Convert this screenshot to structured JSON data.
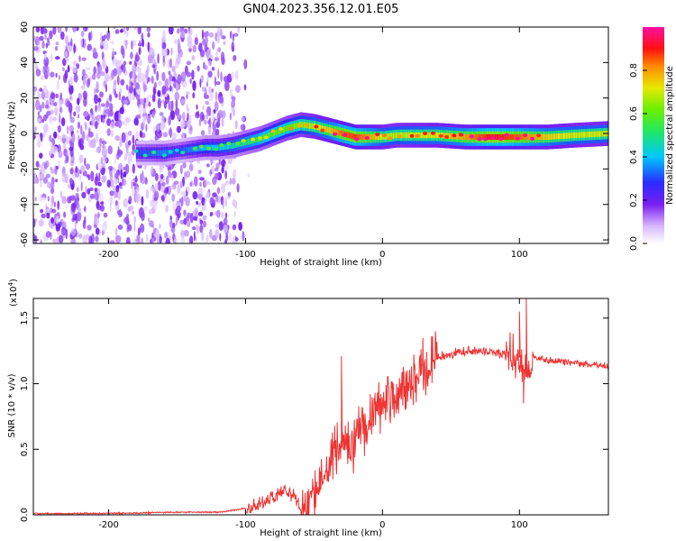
{
  "title": "GN04.2023.356.12.01.E05",
  "chart_data": [
    {
      "type": "heatmap",
      "title": "GN04.2023.356.12.01.E05",
      "xlabel": "Height of straight line (km)",
      "ylabel": "Frequency (Hz)",
      "xlim": [
        -255,
        165
      ],
      "ylim": [
        -62,
        60
      ],
      "x_ticks": [
        -200,
        -100,
        0,
        100
      ],
      "x_tick_labels": [
        "-200",
        "-100",
        "0",
        "100"
      ],
      "y_ticks": [
        -60,
        -40,
        -20,
        0,
        20,
        40,
        60
      ],
      "y_tick_labels": [
        "-60",
        "-40",
        "-20",
        "0",
        "20",
        "40",
        "60"
      ],
      "colorbar": {
        "label": "Normalized spectral amplitude",
        "range": [
          0.0,
          1.0
        ],
        "ticks": [
          0.0,
          0.2,
          0.4,
          0.6,
          0.8
        ],
        "tick_labels": [
          "0.0",
          "0.2",
          "0.4",
          "0.6",
          "0.8"
        ],
        "colormap": "white-purple-blue-cyan-green-yellow-red-magenta"
      },
      "noise_region": {
        "x_range": [
          -255,
          -100
        ],
        "amplitude": 0.12
      },
      "ridge": {
        "x": [
          -180,
          -170,
          -160,
          -150,
          -140,
          -130,
          -120,
          -110,
          -100,
          -90,
          -80,
          -70,
          -60,
          -50,
          -40,
          -30,
          -20,
          -10,
          0,
          10,
          20,
          40,
          60,
          80,
          100,
          120,
          140,
          165
        ],
        "freq": [
          -11,
          -11,
          -11,
          -10,
          -9,
          -8,
          -8,
          -7,
          -5,
          -3,
          0,
          3,
          5,
          4,
          2,
          0,
          -2,
          -2,
          -2,
          -1,
          -1,
          -1,
          -2,
          -2,
          -2,
          -2,
          -1,
          0
        ],
        "amplitude": [
          0.3,
          0.32,
          0.35,
          0.3,
          0.35,
          0.4,
          0.42,
          0.45,
          0.5,
          0.55,
          0.6,
          0.62,
          0.65,
          0.7,
          0.75,
          0.85,
          0.88,
          0.8,
          0.7,
          0.68,
          0.7,
          0.72,
          0.8,
          0.92,
          0.85,
          0.75,
          0.7,
          0.7
        ]
      }
    },
    {
      "type": "line",
      "ylabel": "SNR (10 * v/v)",
      "y_multiplier_label": "(x10",
      "y_multiplier_exponent": "4",
      "y_multiplier_close": ")",
      "xlabel": "Height of straight line (km)",
      "xlim": [
        -255,
        165
      ],
      "ylim": [
        0,
        1.65
      ],
      "x_ticks": [
        -200,
        -100,
        0,
        100
      ],
      "x_tick_labels": [
        "-200",
        "-100",
        "0",
        "100"
      ],
      "y_ticks": [
        0.0,
        0.5,
        1.0,
        1.5
      ],
      "y_tick_labels": [
        "0.0",
        "0.5",
        "1.0",
        "1.5"
      ],
      "series": [
        {
          "name": "SNR",
          "color": "#ee3333",
          "x": [
            -255,
            -200,
            -150,
            -120,
            -105,
            -90,
            -80,
            -70,
            -65,
            -60,
            -55,
            -50,
            -45,
            -40,
            -30,
            -25,
            -20,
            -10,
            0,
            10,
            20,
            30,
            40,
            60,
            80,
            95,
            100,
            105,
            110,
            120,
            140,
            165
          ],
          "y": [
            0.01,
            0.01,
            0.02,
            0.02,
            0.04,
            0.08,
            0.13,
            0.2,
            0.14,
            0.05,
            0.04,
            0.15,
            0.32,
            0.42,
            0.55,
            0.52,
            0.6,
            0.72,
            0.86,
            0.9,
            1.02,
            1.12,
            1.2,
            1.25,
            1.24,
            1.22,
            1.2,
            1.05,
            1.2,
            1.18,
            1.16,
            1.13
          ]
        }
      ],
      "spikes": [
        {
          "x": -30,
          "y": 1.21
        },
        {
          "x": 100,
          "y": 1.55
        },
        {
          "x": 105,
          "y": 1.65
        },
        {
          "x": 103,
          "y": 0.85
        }
      ]
    }
  ]
}
